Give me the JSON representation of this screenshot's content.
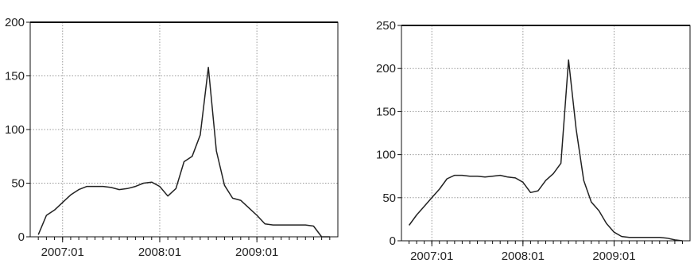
{
  "chart_data": [
    {
      "type": "line",
      "title": "",
      "xlabel": "",
      "ylabel": "",
      "x_tick_labels": [
        "2007:01",
        "2008:01",
        "2009:01"
      ],
      "y_ticks": [
        0,
        50,
        100,
        150,
        200
      ],
      "ylim": [
        0,
        200
      ],
      "xlim": [
        "2006:09",
        "2009:11"
      ],
      "grid": true,
      "legend": "none",
      "series": [
        {
          "x": [
            "2006:10",
            "2006:11",
            "2006:12",
            "2007:01",
            "2007:02",
            "2007:03",
            "2007:04",
            "2007:05",
            "2007:06",
            "2007:07",
            "2007:08",
            "2007:09",
            "2007:10",
            "2007:11",
            "2007:12",
            "2008:01",
            "2008:02",
            "2008:03",
            "2008:04",
            "2008:05",
            "2008:06",
            "2008:07",
            "2008:08",
            "2008:09",
            "2008:10",
            "2008:11",
            "2008:12",
            "2009:01",
            "2009:02",
            "2009:03",
            "2009:04",
            "2009:05",
            "2009:06",
            "2009:07",
            "2009:08",
            "2009:09",
            "2009:10"
          ],
          "values": [
            2,
            20,
            25,
            32,
            39,
            44,
            47,
            47,
            47,
            46,
            44,
            45,
            47,
            50,
            51,
            47,
            38,
            45,
            70,
            75,
            95,
            158,
            80,
            48,
            36,
            34,
            27,
            20,
            12,
            11,
            11,
            11,
            11,
            11,
            10,
            0,
            0
          ]
        }
      ]
    },
    {
      "type": "line",
      "title": "",
      "xlabel": "",
      "ylabel": "",
      "x_tick_labels": [
        "2007:01",
        "2008:01",
        "2009:01"
      ],
      "y_ticks": [
        0,
        50,
        100,
        150,
        200,
        250
      ],
      "ylim": [
        0,
        250
      ],
      "xlim": [
        "2006:09",
        "2009:11"
      ],
      "grid": true,
      "legend": "none",
      "series": [
        {
          "x": [
            "2006:10",
            "2006:11",
            "2006:12",
            "2007:01",
            "2007:02",
            "2007:03",
            "2007:04",
            "2007:05",
            "2007:06",
            "2007:07",
            "2007:08",
            "2007:09",
            "2007:10",
            "2007:11",
            "2007:12",
            "2008:01",
            "2008:02",
            "2008:03",
            "2008:04",
            "2008:05",
            "2008:06",
            "2008:07",
            "2008:08",
            "2008:09",
            "2008:10",
            "2008:11",
            "2008:12",
            "2009:01",
            "2009:02",
            "2009:03",
            "2009:04",
            "2009:05",
            "2009:06",
            "2009:07",
            "2009:08",
            "2009:09",
            "2009:10"
          ],
          "values": [
            18,
            30,
            40,
            50,
            60,
            72,
            76,
            76,
            75,
            75,
            74,
            75,
            76,
            74,
            73,
            68,
            56,
            58,
            70,
            78,
            90,
            210,
            130,
            70,
            45,
            35,
            20,
            10,
            5,
            4,
            4,
            4,
            4,
            4,
            3,
            1,
            0
          ]
        }
      ]
    }
  ]
}
